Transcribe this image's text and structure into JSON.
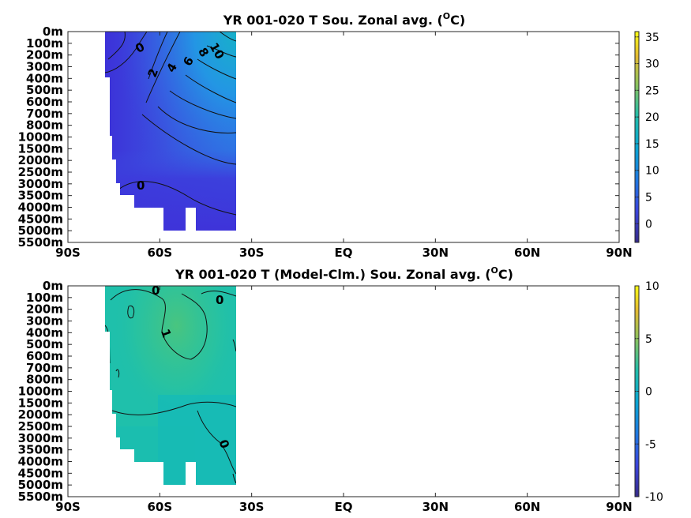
{
  "chart_data": [
    {
      "type": "heatmap",
      "title": "YR 001-020 T Sou. Zonal avg. (",
      "title_sup": "O",
      "title_end": "C)",
      "xticks": [
        "90S",
        "60S",
        "30S",
        "EQ",
        "30N",
        "60N",
        "90N"
      ],
      "yticks": [
        "0m",
        "100m",
        "200m",
        "300m",
        "400m",
        "500m",
        "600m",
        "700m",
        "800m",
        "1000m",
        "1500m",
        "2000m",
        "2500m",
        "3000m",
        "3500m",
        "4000m",
        "4500m",
        "5000m",
        "5500m"
      ],
      "xlim": [
        -90,
        90
      ],
      "colorbar": {
        "range": [
          -3.5,
          36
        ],
        "ticks": [
          "0",
          "5",
          "10",
          "15",
          "20",
          "25",
          "30",
          "35"
        ],
        "tick_values": [
          0,
          5,
          10,
          15,
          20,
          25,
          30,
          35
        ]
      },
      "contour_labels": [
        "0",
        "2",
        "4",
        "6",
        "8",
        "10",
        "0"
      ],
      "colors": {
        "low": "#3e2ed8",
        "mid": "#2a86e8",
        "high": "#13b9b5"
      }
    },
    {
      "type": "heatmap",
      "title": "YR 001-020 T (Model-Clm.) Sou. Zonal avg. (",
      "title_sup": "O",
      "title_end": "C)",
      "xticks": [
        "90S",
        "60S",
        "30S",
        "EQ",
        "30N",
        "60N",
        "90N"
      ],
      "yticks": [
        "0m",
        "100m",
        "200m",
        "300m",
        "400m",
        "500m",
        "600m",
        "700m",
        "800m",
        "1000m",
        "1500m",
        "2000m",
        "2500m",
        "3000m",
        "3500m",
        "4000m",
        "4500m",
        "5000m",
        "5500m"
      ],
      "xlim": [
        -90,
        90
      ],
      "colorbar": {
        "range": [
          -10,
          10
        ],
        "ticks": [
          "10",
          "5",
          "0",
          "-5",
          "-10"
        ],
        "tick_values": [
          10,
          5,
          0,
          -5,
          -10
        ]
      },
      "contour_labels": [
        "0",
        "0",
        "1",
        "0"
      ],
      "colors": {
        "base": "#1cbfae",
        "warm": "#35c78f",
        "cool": "#14b8b8"
      }
    }
  ]
}
